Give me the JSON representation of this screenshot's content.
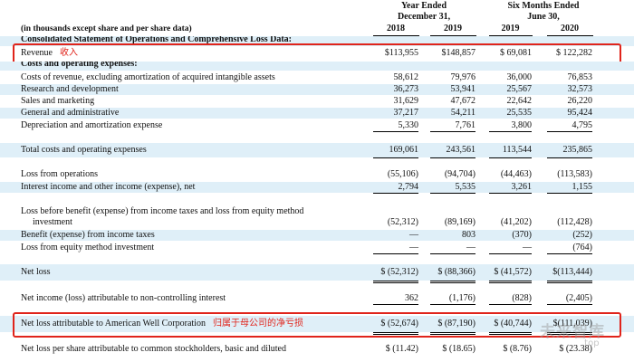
{
  "header": {
    "year_ended": [
      "Year Ended",
      "December 31,"
    ],
    "six_months": [
      "Six Months Ended",
      "June 30,"
    ],
    "years": [
      "2018",
      "2019",
      "2019",
      "2020"
    ],
    "units_note": "(in thousands except share and per share data)",
    "section_title": "Consolidated Statement of Operations and Comprehensive Loss Data:"
  },
  "rows": {
    "revenue": {
      "label": "Revenue",
      "cn": "收入",
      "values": [
        "$113,955",
        "$148,857",
        "$  69,081",
        "$  122,282"
      ]
    },
    "costs_header": {
      "label": "Costs and operating expenses:"
    },
    "cost_of_revenue": {
      "label": "Costs of revenue, excluding amortization of acquired intangible assets",
      "values": [
        "58,612",
        "79,976",
        "36,000",
        "76,853"
      ]
    },
    "rnd": {
      "label": "Research and development",
      "values": [
        "36,273",
        "53,941",
        "25,567",
        "32,573"
      ]
    },
    "sales": {
      "label": "Sales and marketing",
      "values": [
        "31,629",
        "47,672",
        "22,642",
        "26,220"
      ]
    },
    "gna": {
      "label": "General and administrative",
      "values": [
        "37,217",
        "54,211",
        "25,535",
        "95,424"
      ]
    },
    "dna": {
      "label": "Depreciation and amortization expense",
      "values": [
        "5,330",
        "7,761",
        "3,800",
        "4,795"
      ]
    },
    "total_costs": {
      "label": "Total costs and operating expenses",
      "values": [
        "169,061",
        "243,561",
        "113,544",
        "235,865"
      ]
    },
    "loss_ops": {
      "label": "Loss from operations",
      "values": [
        "(55,106)",
        "(94,704)",
        "(44,463)",
        "(113,583)"
      ]
    },
    "interest": {
      "label": "Interest income and other income (expense), net",
      "values": [
        "2,794",
        "5,535",
        "3,261",
        "1,155"
      ]
    },
    "loss_before": {
      "label1": "Loss before benefit (expense) from income taxes and loss from equity method",
      "label2": "investment",
      "values": [
        "(52,312)",
        "(89,169)",
        "(41,202)",
        "(112,428)"
      ]
    },
    "benefit": {
      "label": "Benefit (expense) from income taxes",
      "values": [
        "—",
        "803",
        "(370)",
        "(252)"
      ]
    },
    "equity_loss": {
      "label": "Loss from equity method investment",
      "values": [
        "—",
        "—",
        "—",
        "(764)"
      ]
    },
    "net_loss": {
      "label": "Net loss",
      "values": [
        "$ (52,312)",
        "$ (88,366)",
        "$ (41,572)",
        "$(113,444)"
      ]
    },
    "nci": {
      "label": "Net income (loss) attributable to non-controlling interest",
      "values": [
        "362",
        "(1,176)",
        "(828)",
        "(2,405)"
      ]
    },
    "net_loss_amwell": {
      "label": "Net loss attributable to American Well Corporation",
      "cn": "归属于母公司的净亏损",
      "values": [
        "$ (52,674)",
        "$ (87,190)",
        "$ (40,744)",
        "$(111,039)"
      ]
    },
    "eps": {
      "label": "Net loss per share attributable to common stockholders, basic and diluted",
      "values": [
        "$   (11.42)",
        "$   (18.65)",
        "$   (8.76)",
        "$   (23.38)"
      ]
    }
  },
  "watermark": {
    "main": "未来智库",
    "sub": ".top"
  },
  "colors": {
    "shade": "#dfeff8",
    "highlight": "#e0241b"
  }
}
